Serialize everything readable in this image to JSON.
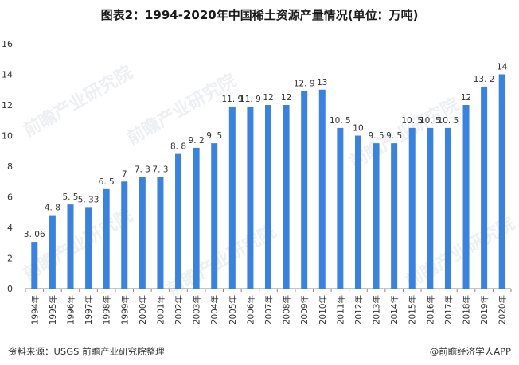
{
  "chart_data": {
    "type": "bar",
    "title": "图表2：1994-2020年中国稀土资源产量情况(单位：万吨)",
    "categories": [
      "1994年",
      "1995年",
      "1996年",
      "1997年",
      "1998年",
      "1999年",
      "2000年",
      "2001年",
      "2002年",
      "2003年",
      "2004年",
      "2005年",
      "2006年",
      "2007年",
      "2008年",
      "2009年",
      "2010年",
      "2011年",
      "2012年",
      "2013年",
      "2014年",
      "2015年",
      "2016年",
      "2017年",
      "2018年",
      "2019年",
      "2020年"
    ],
    "values": [
      3.06,
      4.8,
      5.5,
      5.33,
      6.5,
      7,
      7.3,
      7.3,
      8.8,
      9.2,
      9.5,
      11.9,
      11.9,
      12,
      12,
      12.9,
      13,
      10.5,
      10,
      9.5,
      9.5,
      10.5,
      10.5,
      10.5,
      12,
      13.2,
      14
    ],
    "value_labels": [
      "3. 06",
      "4. 8",
      "5. 5",
      "5. 33",
      "6. 5",
      "7",
      "7. 3",
      "7. 3",
      "8. 8",
      "9. 2",
      "9. 5",
      "11. 9",
      "11. 9",
      "12",
      "12",
      "12. 9",
      "13",
      "10. 5",
      "10",
      "9. 5",
      "9. 5",
      "10. 5",
      "10. 5",
      "10. 5",
      "12",
      "13. 2",
      "14"
    ],
    "yticks": [
      0,
      2,
      4,
      6,
      8,
      10,
      12,
      14,
      16
    ],
    "ylim": [
      0,
      16
    ],
    "xlabel": "",
    "ylabel": "",
    "bar_color": "#3b82de",
    "grid": false
  },
  "footer": {
    "source": "资料来源：USGS 前瞻产业研究院整理",
    "brand": "@前瞻经济学人APP"
  },
  "watermark": {
    "text": "前瞻产业研究院"
  }
}
